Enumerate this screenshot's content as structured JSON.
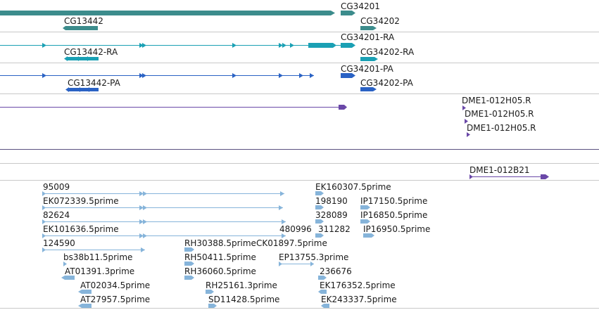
{
  "track_colors": {
    "gene": "#3c8c8c",
    "transcript": "#1aa0b4",
    "protein": "#2a62c4",
    "est": "#6a48a8",
    "cdna": "#86b4da",
    "divider": "#c8c8c8",
    "dark_divider": "#5a5080"
  },
  "tracks": {
    "genes": {
      "labels": [
        "CG34201",
        "CG13442",
        "CG34202"
      ]
    },
    "transcripts": {
      "labels": [
        "CG34201-RA",
        "CG13442-RA",
        "CG34202-RA"
      ]
    },
    "proteins": {
      "labels": [
        "CG34201-PA",
        "CG13442-PA",
        "CG34202-PA"
      ]
    },
    "ests": {
      "labels": [
        "DME1-012H05.R",
        "DME1-012H05.R",
        "DME1-012H05.R"
      ]
    },
    "ests2": {
      "labels": [
        "DME1-012B21"
      ]
    },
    "cdna": {
      "labels": [
        "95009",
        "EK072339.5prime",
        "82624",
        "EK101636.5prime",
        "124590",
        "bs38b11.5prime",
        "AT01391.3prime",
        "AT02034.5prime",
        "AT27957.5prime",
        "RH30388.5prime",
        "RH50411.5prime",
        "RH36060.5prime",
        "RH25161.3prime",
        "SD11428.5prime",
        "CK01897.5prime",
        "480996",
        "EP13755.3prime",
        "EK160307.5prime",
        "198190",
        "328089",
        "311282",
        "236676",
        "EK176352.5prime",
        "EK243337.5prime",
        "IP17150.5prime",
        "IP16850.5prime",
        "IP16950.5prime"
      ]
    }
  }
}
